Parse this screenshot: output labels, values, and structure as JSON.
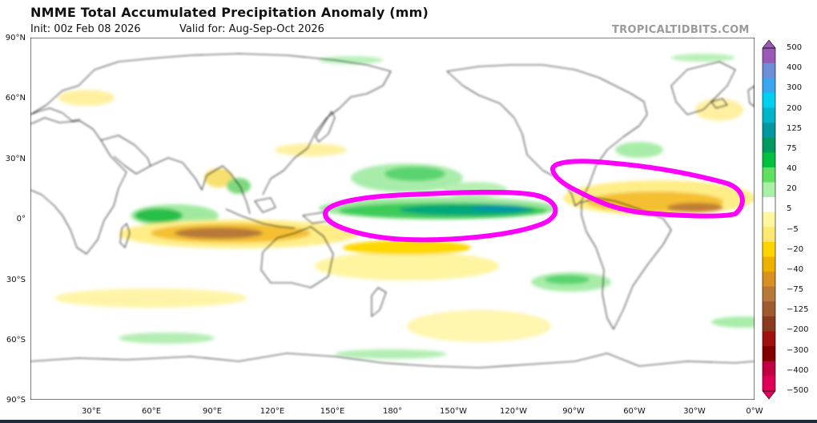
{
  "header": {
    "title": "NMME Total Accumulated Precipitation Anomaly (mm)",
    "init": "Init: 00z Feb 08 2026",
    "valid": "Valid for: Aug-Sep-Oct 2026",
    "credit": "TROPICALTIDBITS.COM"
  },
  "axes": {
    "lat_labels": [
      "90°N",
      "60°N",
      "30°N",
      "0°",
      "30°S",
      "60°S",
      "90°S"
    ],
    "lon_labels": [
      "30°E",
      "60°E",
      "90°E",
      "120°E",
      "150°E",
      "180°",
      "150°W",
      "120°W",
      "90°W",
      "60°W",
      "30°W",
      "0°W"
    ]
  },
  "colorbar": {
    "labels": [
      "500",
      "400",
      "300",
      "200",
      "125",
      "75",
      "40",
      "20",
      "5",
      "−5",
      "−20",
      "−40",
      "−75",
      "−125",
      "−200",
      "−300",
      "−400",
      "−500"
    ],
    "colors": [
      "#9b59b6",
      "#6d8fd8",
      "#39a7f0",
      "#00d0f0",
      "#00b4c8",
      "#0098a0",
      "#009a60",
      "#00c040",
      "#60e060",
      "#a8f0a8",
      "#ffffff",
      "#fff6a0",
      "#ffe870",
      "#ffd200",
      "#f0b000",
      "#d89020",
      "#b87838",
      "#a05a30",
      "#8a3a1e",
      "#a01010",
      "#800000",
      "#c00040",
      "#e0005a"
    ]
  },
  "chart_data": {
    "type": "map",
    "title": "NMME Total Accumulated Precipitation Anomaly (mm)",
    "init": "00z Feb 08 2026",
    "valid": "Aug-Sep-Oct 2026",
    "units": "mm",
    "projection": "equirectangular, 0°E to 360°E, 90°S to 90°N",
    "anomaly_regions": [
      {
        "name": "Equatorial central/eastern Pacific",
        "sign": "wet",
        "approx_mm": 150,
        "lon_range": [
          155,
          260
        ],
        "lat_range": [
          -3,
          8
        ]
      },
      {
        "name": "North Pacific tropics (ITCZ)",
        "sign": "wet",
        "approx_mm": 40,
        "lon_range": [
          150,
          235
        ],
        "lat_range": [
          10,
          25
        ]
      },
      {
        "name": "Western equatorial Indian Ocean",
        "sign": "wet",
        "approx_mm": 40,
        "lon_range": [
          40,
          80
        ],
        "lat_range": [
          -2,
          8
        ]
      },
      {
        "name": "Maritime Continent / eastern Indian Ocean",
        "sign": "dry",
        "approx_mm": -125,
        "lon_range": [
          65,
          135
        ],
        "lat_range": [
          -12,
          0
        ]
      },
      {
        "name": "Caribbean / tropical Atlantic",
        "sign": "dry",
        "approx_mm": -75,
        "lon_range": [
          280,
          350
        ],
        "lat_range": [
          0,
          20
        ]
      },
      {
        "name": "South Pacific Convergence Zone",
        "sign": "dry",
        "approx_mm": -40,
        "lon_range": [
          150,
          215
        ],
        "lat_range": [
          -25,
          -8
        ]
      }
    ],
    "annotations": [
      {
        "shape": "ellipse",
        "color": "#ff00ff",
        "label": "Equatorial Pacific wet anomaly",
        "lon_center": 205,
        "lat_center": 2
      },
      {
        "shape": "ellipse",
        "color": "#ff00ff",
        "label": "Caribbean/Atlantic dry anomaly",
        "lon_center": 315,
        "lat_center": 13
      }
    ],
    "colorbar_levels": [
      500,
      400,
      300,
      200,
      125,
      75,
      40,
      20,
      5,
      -5,
      -20,
      -40,
      -75,
      -125,
      -200,
      -300,
      -400,
      -500
    ]
  }
}
